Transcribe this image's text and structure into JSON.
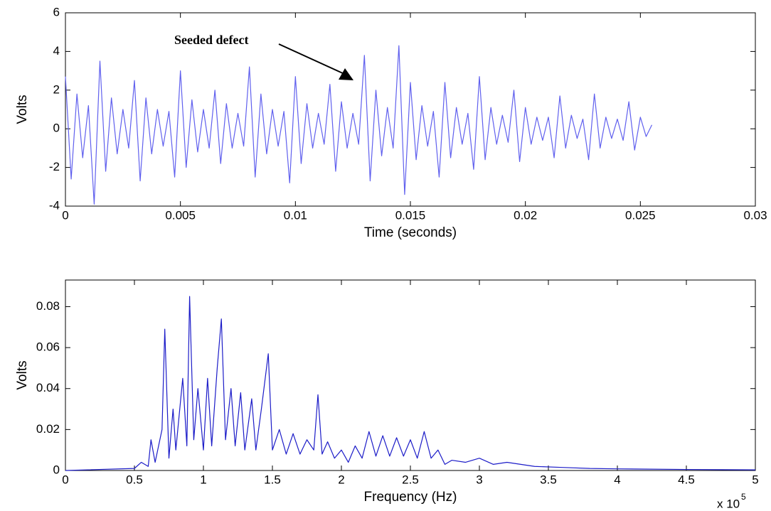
{
  "chart_data": [
    {
      "type": "line",
      "y_label": "Volts",
      "x_label": "Time (seconds)",
      "annotation": "Seeded defect",
      "xlim": [
        0,
        0.03
      ],
      "xticks": [
        0,
        0.005,
        0.01,
        0.015,
        0.02,
        0.025,
        0.03
      ],
      "ylim": [
        -4,
        6
      ],
      "yticks": [
        -4,
        -2,
        0,
        2,
        4,
        6
      ],
      "grid": false,
      "series": [
        {
          "color": "#6060ee",
          "x": [
            0,
            0.00025,
            0.0005,
            0.00075,
            0.001,
            0.00125,
            0.0015,
            0.00175,
            0.002,
            0.00225,
            0.0025,
            0.00275,
            0.003,
            0.00325,
            0.0035,
            0.00375,
            0.004,
            0.00425,
            0.0045,
            0.00475,
            0.005,
            0.00525,
            0.0055,
            0.00575,
            0.006,
            0.00625,
            0.0065,
            0.00675,
            0.007,
            0.00725,
            0.0075,
            0.00775,
            0.008,
            0.00825,
            0.0085,
            0.00875,
            0.009,
            0.00925,
            0.0095,
            0.00975,
            0.01,
            0.01025,
            0.0105,
            0.01075,
            0.011,
            0.01125,
            0.0115,
            0.01175,
            0.012,
            0.01225,
            0.0125,
            0.01275,
            0.013,
            0.01325,
            0.0135,
            0.01375,
            0.014,
            0.01425,
            0.0145,
            0.01475,
            0.015,
            0.01525,
            0.0155,
            0.01575,
            0.016,
            0.01625,
            0.0165,
            0.01675,
            0.017,
            0.01725,
            0.0175,
            0.01775,
            0.018,
            0.01825,
            0.0185,
            0.01875,
            0.019,
            0.01925,
            0.0195,
            0.01975,
            0.02,
            0.02025,
            0.0205,
            0.02075,
            0.021,
            0.02125,
            0.0215,
            0.02175,
            0.022,
            0.02225,
            0.0225,
            0.02275,
            0.023,
            0.02325,
            0.0235,
            0.02375,
            0.024,
            0.02425,
            0.0245,
            0.02475,
            0.025,
            0.02525,
            0.0255
          ],
          "values": [
            2.7,
            -2.6,
            1.8,
            -1.5,
            1.2,
            -3.9,
            3.5,
            -2.2,
            1.6,
            -1.3,
            1.0,
            -1.0,
            2.5,
            -2.7,
            1.6,
            -1.3,
            1.0,
            -0.9,
            0.9,
            -2.5,
            3.0,
            -2.0,
            1.5,
            -1.2,
            1.0,
            -1.0,
            2.0,
            -1.8,
            1.3,
            -1.0,
            0.8,
            -0.9,
            3.2,
            -2.5,
            1.8,
            -1.3,
            1.0,
            -0.9,
            0.9,
            -2.8,
            2.7,
            -1.8,
            1.3,
            -1.0,
            0.8,
            -0.8,
            2.3,
            -2.2,
            1.4,
            -1.0,
            0.8,
            -0.8,
            3.8,
            -2.7,
            2.0,
            -1.4,
            1.1,
            -1.0,
            4.3,
            -3.4,
            2.4,
            -1.6,
            1.2,
            -0.9,
            0.9,
            -2.5,
            2.4,
            -1.5,
            1.1,
            -0.8,
            0.8,
            -2.1,
            2.7,
            -1.6,
            1.1,
            -0.8,
            0.7,
            -0.7,
            2.0,
            -1.7,
            1.1,
            -0.8,
            0.6,
            -0.6,
            0.6,
            -1.5,
            1.7,
            -1.0,
            0.7,
            -0.5,
            0.5,
            -1.6,
            1.8,
            -1.0,
            0.6,
            -0.5,
            0.5,
            -0.6,
            1.4,
            -1.1,
            0.6,
            -0.4,
            0.2
          ]
        }
      ]
    },
    {
      "type": "line",
      "y_label": "Volts",
      "x_label": "Frequency (Hz)",
      "x_multiplier": {
        "base": "x 10",
        "exponent": "5"
      },
      "xlim": [
        0,
        5
      ],
      "xticks": [
        0,
        0.5,
        1,
        1.5,
        2,
        2.5,
        3,
        3.5,
        4,
        4.5,
        5
      ],
      "ylim": [
        0,
        0.093
      ],
      "yticks": [
        0,
        0.02,
        0.04,
        0.06,
        0.08
      ],
      "grid": false,
      "series": [
        {
          "color": "#1c1cc8",
          "x": [
            0,
            0.5,
            0.55,
            0.6,
            0.62,
            0.65,
            0.7,
            0.72,
            0.75,
            0.78,
            0.8,
            0.85,
            0.88,
            0.9,
            0.93,
            0.96,
            1.0,
            1.03,
            1.06,
            1.1,
            1.13,
            1.16,
            1.2,
            1.23,
            1.27,
            1.3,
            1.35,
            1.38,
            1.42,
            1.47,
            1.5,
            1.55,
            1.6,
            1.65,
            1.7,
            1.75,
            1.8,
            1.83,
            1.86,
            1.9,
            1.95,
            2.0,
            2.05,
            2.1,
            2.15,
            2.2,
            2.25,
            2.3,
            2.35,
            2.4,
            2.45,
            2.5,
            2.55,
            2.6,
            2.65,
            2.7,
            2.75,
            2.8,
            2.9,
            3.0,
            3.1,
            3.2,
            3.4,
            3.6,
            3.8,
            4.0,
            4.5,
            5.0
          ],
          "values": [
            0,
            0.001,
            0.004,
            0.002,
            0.015,
            0.004,
            0.02,
            0.069,
            0.006,
            0.03,
            0.01,
            0.045,
            0.012,
            0.085,
            0.015,
            0.04,
            0.01,
            0.045,
            0.012,
            0.05,
            0.074,
            0.015,
            0.04,
            0.012,
            0.038,
            0.01,
            0.035,
            0.01,
            0.03,
            0.057,
            0.01,
            0.02,
            0.008,
            0.018,
            0.008,
            0.015,
            0.01,
            0.037,
            0.008,
            0.014,
            0.006,
            0.01,
            0.004,
            0.012,
            0.006,
            0.019,
            0.007,
            0.017,
            0.007,
            0.016,
            0.007,
            0.015,
            0.006,
            0.019,
            0.006,
            0.01,
            0.003,
            0.005,
            0.004,
            0.006,
            0.003,
            0.004,
            0.002,
            0.0015,
            0.001,
            0.0008,
            0.0005,
            0.0003
          ]
        }
      ]
    }
  ]
}
